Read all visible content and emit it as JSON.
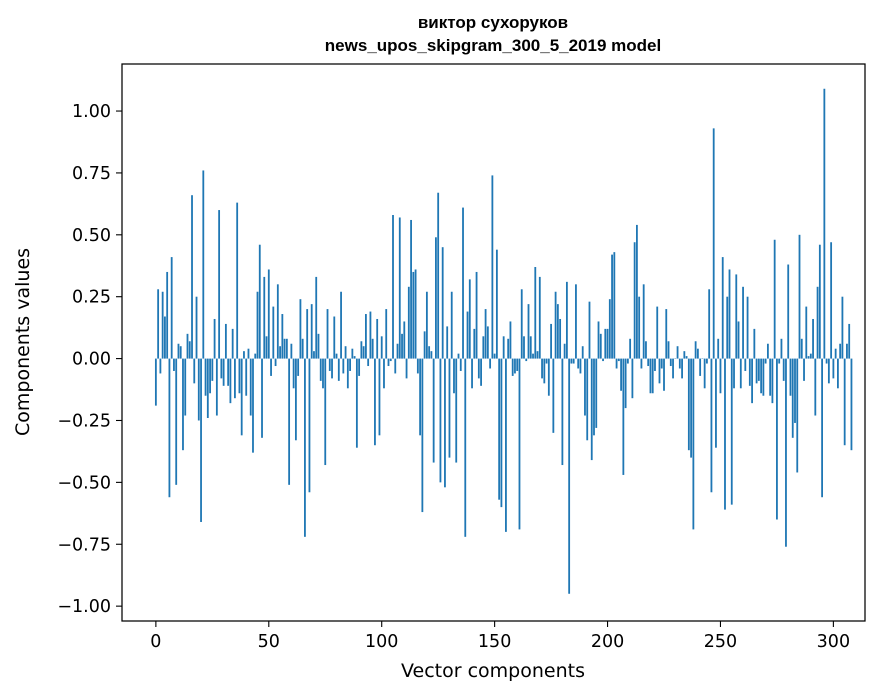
{
  "chart_data": {
    "type": "bar",
    "title": "виктор сухоруков",
    "subtitle": "news_upos_skipgram_300_5_2019 model",
    "xlabel": "Vector components",
    "ylabel": "Components values",
    "xlim": [
      -15,
      314
    ],
    "ylim": [
      -1.06,
      1.19
    ],
    "xticks": [
      0,
      50,
      100,
      150,
      200,
      250,
      300
    ],
    "xtick_labels": [
      "0",
      "50",
      "100",
      "150",
      "200",
      "250",
      "300"
    ],
    "yticks": [
      1.0,
      0.75,
      0.5,
      0.25,
      0.0,
      -0.25,
      -0.5,
      -0.75,
      -1.0
    ],
    "ytick_labels": [
      "1.00",
      "0.75",
      "0.50",
      "0.25",
      "0.00",
      "−0.25",
      "−0.50",
      "−0.75",
      "−1.00"
    ],
    "bar_color": "#1f77b4",
    "grid": false,
    "legend": "none",
    "values": [
      -0.19,
      0.28,
      -0.06,
      0.27,
      0.17,
      0.35,
      -0.56,
      0.41,
      -0.05,
      -0.51,
      0.06,
      0.05,
      -0.37,
      -0.23,
      0.1,
      0.07,
      0.66,
      -0.1,
      0.25,
      -0.25,
      -0.66,
      0.76,
      -0.15,
      -0.24,
      -0.14,
      -0.09,
      0.16,
      -0.23,
      0.6,
      -0.08,
      -0.11,
      0.14,
      -0.11,
      -0.18,
      0.12,
      -0.16,
      0.63,
      -0.14,
      -0.31,
      0.03,
      -0.15,
      0.04,
      -0.23,
      -0.38,
      0.02,
      0.27,
      0.46,
      -0.32,
      0.33,
      0.09,
      0.36,
      -0.07,
      0.21,
      -0.03,
      0.3,
      0.05,
      0.18,
      0.08,
      0.08,
      -0.51,
      0.06,
      -0.12,
      -0.33,
      -0.07,
      0.24,
      0.08,
      -0.72,
      0.2,
      -0.54,
      0.22,
      0.03,
      0.33,
      0.1,
      -0.09,
      -0.12,
      -0.43,
      0.2,
      -0.05,
      -0.08,
      0.17,
      0.02,
      -0.09,
      0.27,
      -0.06,
      0.05,
      -0.12,
      -0.05,
      0.04,
      0.01,
      -0.36,
      -0.07,
      0.07,
      0.05,
      0.18,
      -0.03,
      0.19,
      0.08,
      -0.35,
      0.16,
      -0.31,
      0.09,
      -0.12,
      0.2,
      -0.03,
      -0.01,
      0.58,
      -0.06,
      0.06,
      0.57,
      0.1,
      0.15,
      -0.08,
      0.29,
      0.56,
      0.35,
      0.36,
      -0.06,
      -0.31,
      -0.62,
      0.11,
      0.27,
      0.05,
      0.03,
      -0.42,
      0.49,
      0.67,
      -0.5,
      0.45,
      -0.52,
      0.13,
      -0.4,
      0.27,
      -0.14,
      -0.42,
      0.02,
      -0.05,
      0.61,
      -0.72,
      0.19,
      0.32,
      -0.12,
      0.12,
      0.35,
      -0.08,
      -0.11,
      0.09,
      0.2,
      0.13,
      -0.04,
      0.74,
      0.02,
      0.44,
      -0.57,
      -0.6,
      0.09,
      -0.7,
      0.08,
      0.15,
      -0.07,
      -0.06,
      -0.05,
      -0.69,
      0.28,
      0.09,
      -0.01,
      0.22,
      0.09,
      0.02,
      0.37,
      0.03,
      0.33,
      -0.08,
      -0.1,
      -0.02,
      -0.15,
      0.14,
      -0.3,
      0.27,
      0.22,
      0.16,
      -0.43,
      0.06,
      0.31,
      -0.95,
      -0.02,
      -0.02,
      0.3,
      -0.04,
      -0.06,
      0.05,
      -0.23,
      -0.33,
      0.23,
      -0.41,
      -0.31,
      -0.28,
      0.15,
      0.1,
      -0.01,
      0.12,
      0.12,
      0.24,
      0.42,
      0.43,
      -0.04,
      -0.01,
      -0.13,
      -0.47,
      -0.2,
      -0.02,
      0.08,
      -0.16,
      0.47,
      0.54,
      0.25,
      -0.04,
      0.3,
      0.07,
      -0.03,
      -0.14,
      -0.14,
      -0.05,
      0.21,
      -0.1,
      -0.04,
      -0.13,
      0.2,
      0.07,
      -0.03,
      -0.08,
      0.0,
      0.05,
      -0.04,
      -0.08,
      0.03,
      0.01,
      -0.37,
      -0.4,
      -0.69,
      0.07,
      0.04,
      -0.07,
      0.0,
      -0.12,
      -0.02,
      0.28,
      -0.54,
      0.93,
      -0.36,
      0.08,
      -0.14,
      0.41,
      -0.61,
      0.25,
      0.36,
      -0.59,
      -0.12,
      0.34,
      0.15,
      -0.12,
      0.29,
      -0.05,
      0.25,
      -0.11,
      -0.18,
      0.12,
      -0.1,
      -0.09,
      -0.14,
      -0.15,
      -0.02,
      0.06,
      -0.15,
      -0.18,
      0.48,
      -0.65,
      -0.02,
      0.08,
      -0.09,
      -0.76,
      0.38,
      -0.15,
      -0.32,
      -0.26,
      -0.46,
      0.5,
      0.08,
      -0.09,
      0.21,
      0.01,
      0.02,
      0.16,
      -0.23,
      0.29,
      0.46,
      -0.56,
      1.09,
      -0.02,
      -0.1,
      0.47,
      -0.08,
      0.04,
      -0.12,
      0.06,
      0.25,
      -0.35,
      0.06,
      0.14,
      -0.37
    ]
  }
}
